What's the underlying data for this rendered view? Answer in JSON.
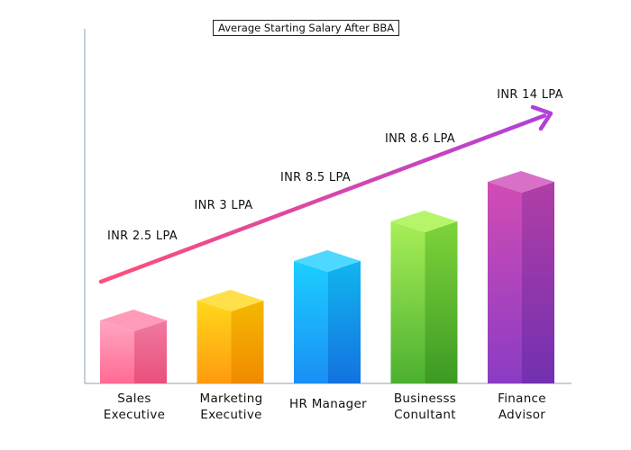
{
  "chart_data": {
    "type": "bar",
    "title": "Average Starting Salary After BBA",
    "categories": [
      [
        "Sales",
        "Executive"
      ],
      [
        "Marketing",
        "Executive"
      ],
      [
        "HR Manager"
      ],
      [
        "Businesss",
        "Conultant"
      ],
      [
        "Finance",
        "Advisor"
      ]
    ],
    "values": [
      2.5,
      3,
      8.5,
      8.6,
      14
    ],
    "value_labels": [
      "INR 2.5 LPA",
      "INR 3 LPA",
      "INR 8.5 LPA",
      "INR 8.6 LPA",
      "INR 14 LPA"
    ],
    "bar_colors": [
      {
        "top": "#ff9ab8",
        "front_top": "#ffa6c2",
        "front_bottom": "#ff6b94",
        "side_top": "#f07aa0",
        "side_bottom": "#e8507c"
      },
      {
        "top": "#ffe04a",
        "front_top": "#ffd81a",
        "front_bottom": "#ff9a10",
        "side_top": "#f5b800",
        "side_bottom": "#f08a00"
      },
      {
        "top": "#4fd8ff",
        "front_top": "#1ccfff",
        "front_bottom": "#1a8ef5",
        "side_top": "#11b6ee",
        "side_bottom": "#1372e0"
      },
      {
        "top": "#b6f56a",
        "front_top": "#a8ef58",
        "front_bottom": "#4cb030",
        "side_top": "#7ed43a",
        "side_bottom": "#3c9a24"
      },
      {
        "top": "#d870c8",
        "front_top": "#d24cb4",
        "front_bottom": "#8a3cc4",
        "side_top": "#b13ea6",
        "side_bottom": "#7230b0"
      }
    ],
    "arrow_gradient": [
      "#ff4f7a",
      "#b23fd8"
    ],
    "xlabel": "",
    "ylabel": ""
  }
}
